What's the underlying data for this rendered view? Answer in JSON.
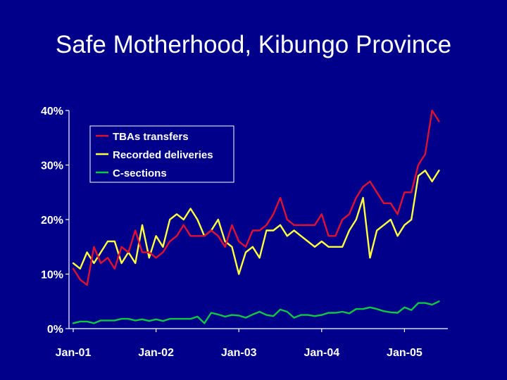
{
  "slide": {
    "title": "Safe Motherhood, Kibungo Province"
  },
  "colors": {
    "background": "#00008B",
    "text": "#FFFFFF",
    "axis": "#FFFFFF"
  },
  "chart_data": {
    "type": "line",
    "title": "Safe Motherhood, Kibungo Province",
    "xlabel": "",
    "ylabel": "",
    "x_start": "Jan-01",
    "x_end": "Jul-05",
    "x_ticks": [
      "Jan-01",
      "Jan-02",
      "Jan-03",
      "Jan-04",
      "Jan-05"
    ],
    "ylim": [
      0,
      40
    ],
    "y_ticks": [
      "0%",
      "10%",
      "20%",
      "30%",
      "40%"
    ],
    "y_tick_values": [
      0,
      10,
      20,
      30,
      40
    ],
    "grid": false,
    "legend": {
      "position": "top-left",
      "framed": true
    },
    "series": [
      {
        "name": "TBAs transfers",
        "color": "#E01030",
        "values": [
          11,
          9,
          8,
          15,
          12,
          13,
          11,
          15,
          14,
          18,
          14,
          14,
          13,
          14,
          16,
          17,
          19,
          17,
          17,
          17,
          18,
          17,
          15,
          19,
          16,
          15,
          18,
          18,
          19,
          21,
          24,
          20,
          19,
          19,
          19,
          19,
          21,
          17,
          17,
          20,
          21,
          24,
          26,
          27,
          25,
          23,
          23,
          21,
          25,
          25,
          30,
          32,
          40,
          38
        ]
      },
      {
        "name": "Recorded deliveries",
        "color": "#FFFF40",
        "values": [
          12,
          11,
          14,
          12,
          14,
          16,
          16,
          12,
          14,
          12,
          19,
          13,
          17,
          15,
          20,
          21,
          20,
          22,
          20,
          17,
          18,
          20,
          16,
          15,
          10,
          14,
          15,
          13,
          18,
          18,
          19,
          17,
          18,
          17,
          16,
          15,
          16,
          15,
          15,
          15,
          18,
          20,
          24,
          13,
          18,
          19,
          20,
          17,
          19,
          20,
          28,
          29,
          27,
          29
        ]
      },
      {
        "name": "C-sections",
        "color": "#10C840",
        "values": [
          1.0,
          1.3,
          1.3,
          1.0,
          1.5,
          1.5,
          1.5,
          1.8,
          1.8,
          1.5,
          1.7,
          1.4,
          1.7,
          1.4,
          1.8,
          1.8,
          1.8,
          1.8,
          2.2,
          1.0,
          2.9,
          2.6,
          2.2,
          2.5,
          2.4,
          2.0,
          2.6,
          3.1,
          2.5,
          2.3,
          3.5,
          3.1,
          2.0,
          2.5,
          2.5,
          2.3,
          2.5,
          2.9,
          2.9,
          3.1,
          2.8,
          3.6,
          3.6,
          3.9,
          3.6,
          3.2,
          3.0,
          2.9,
          3.9,
          3.4,
          4.7,
          4.7,
          4.4,
          5.0
        ]
      }
    ]
  }
}
